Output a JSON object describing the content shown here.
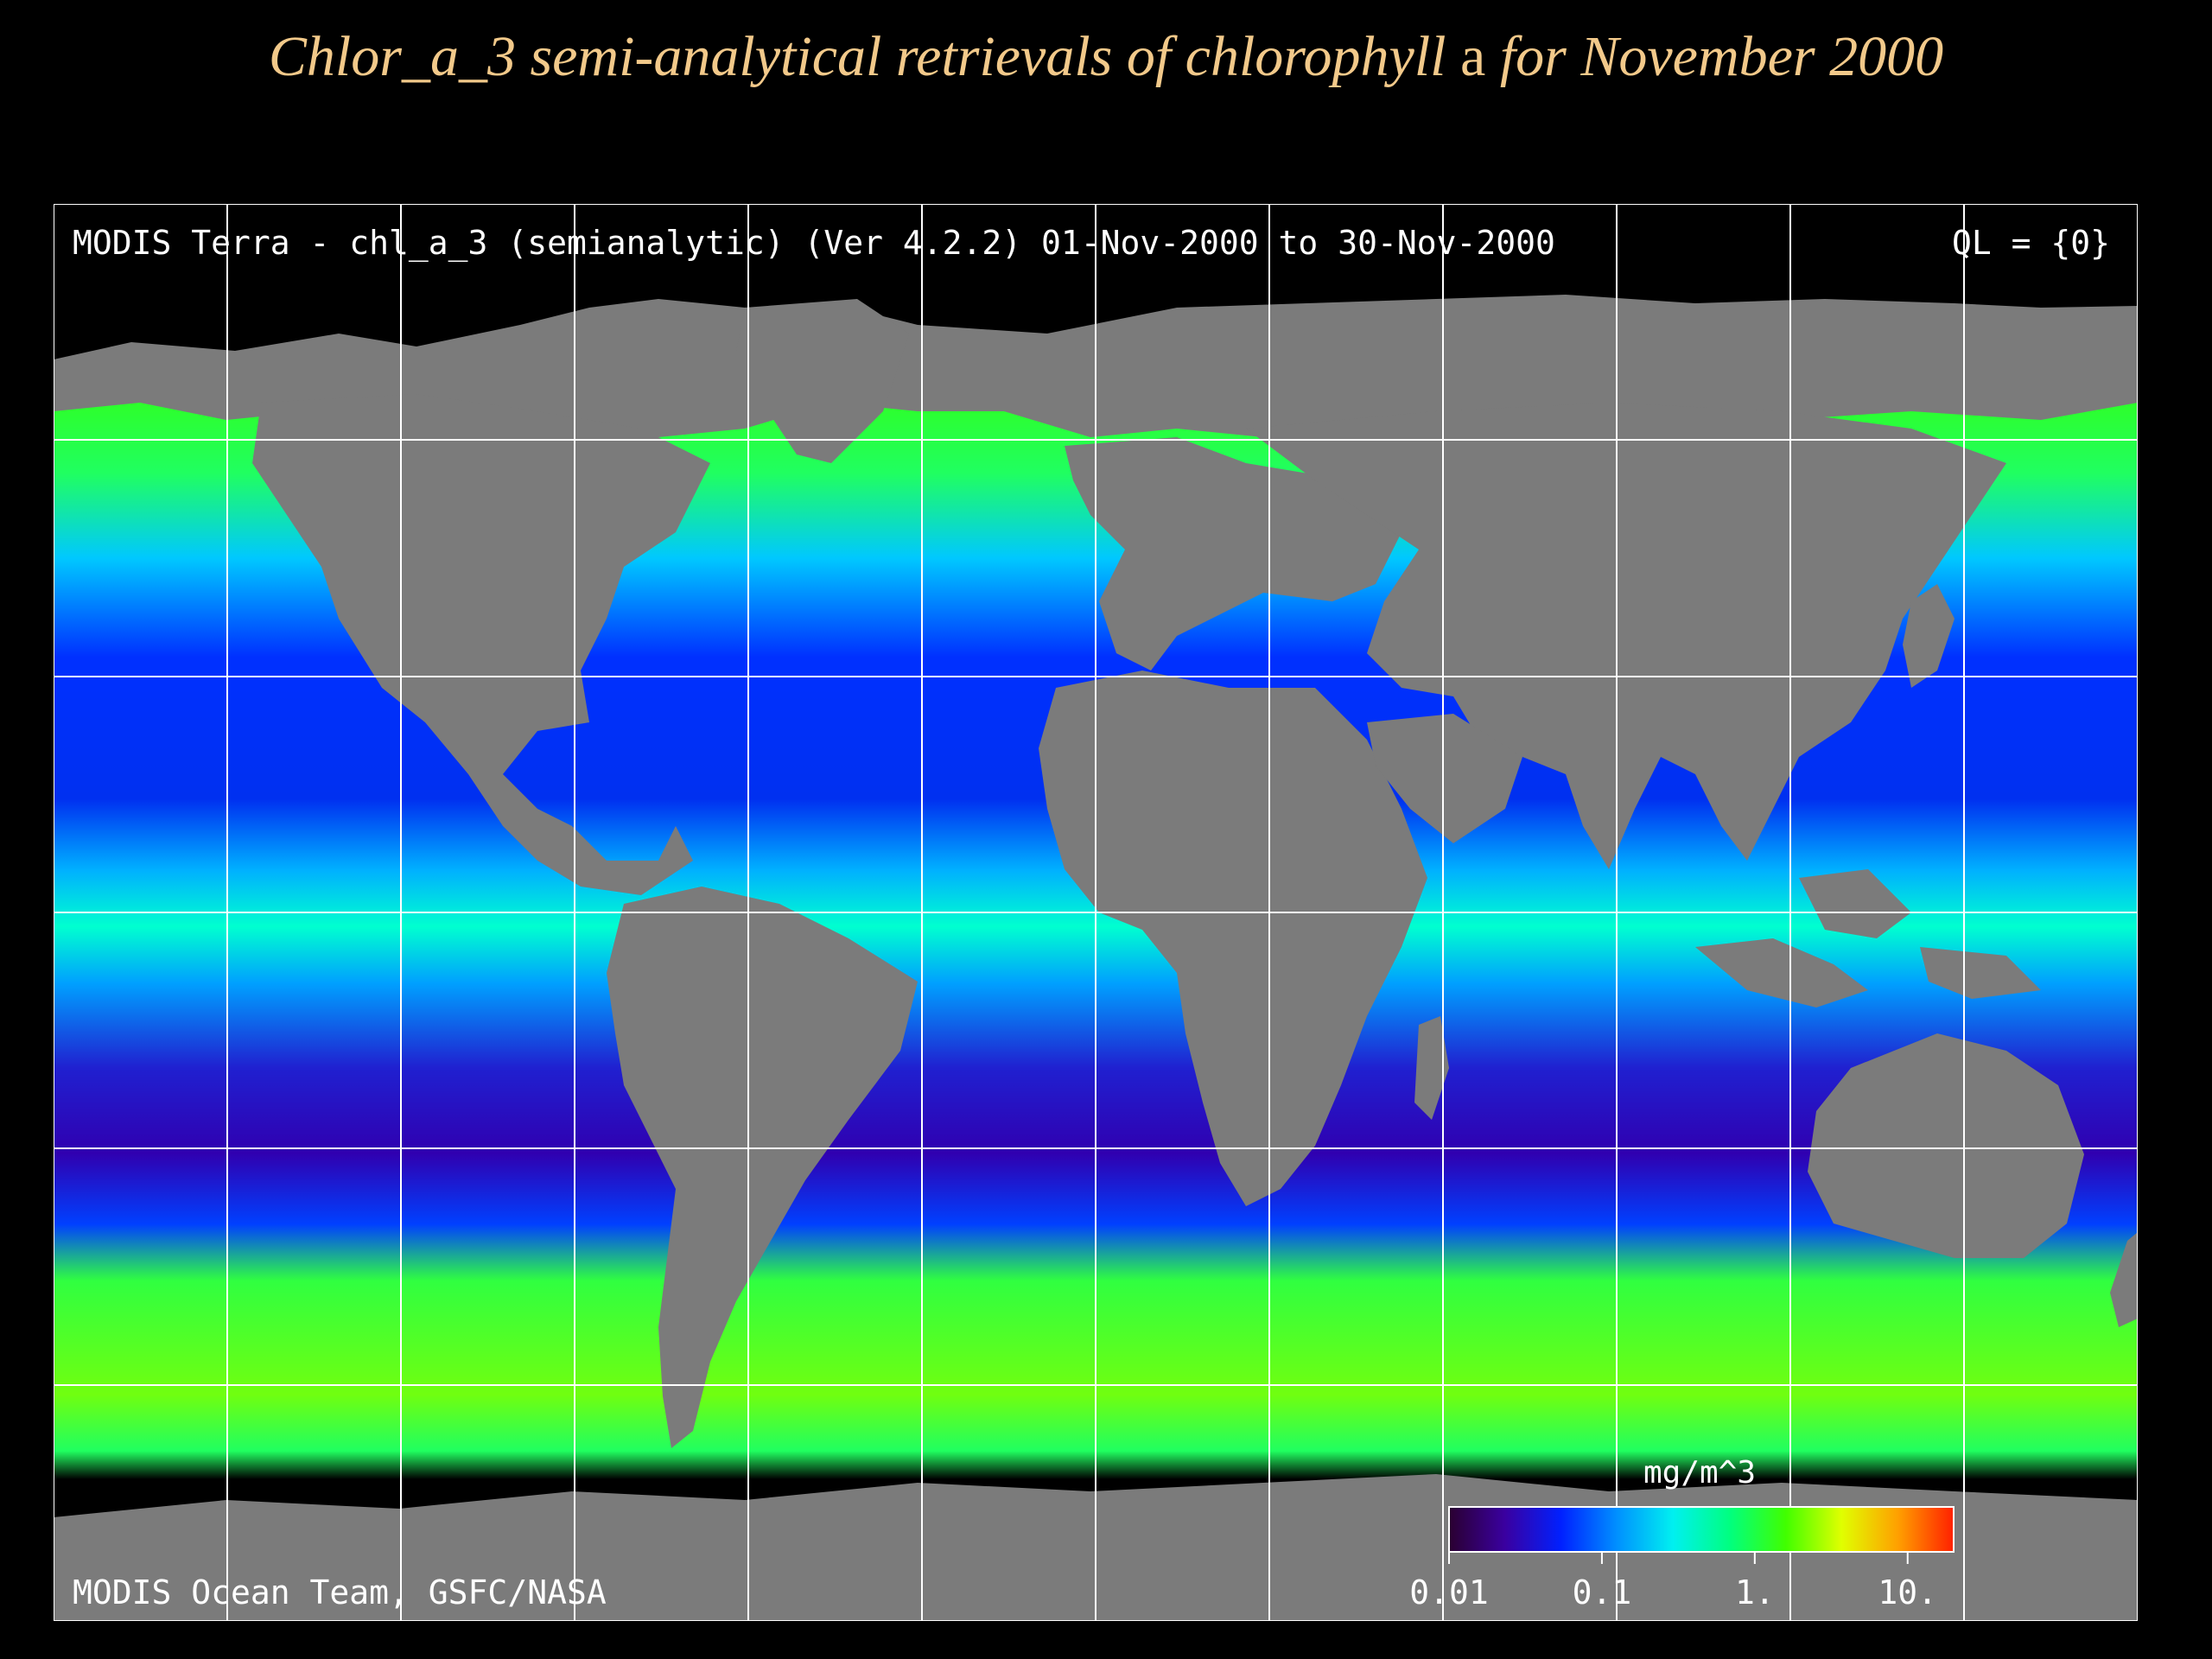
{
  "slide": {
    "title_part1": "Chlor_a_3 semi-analytical retrievals of chlorophyll",
    "title_a": "a",
    "title_part2": "for November 2000"
  },
  "map": {
    "header_left": "MODIS Terra - chl_a_3 (semianalytic)  (Ver 4.2.2)  01-Nov-2000 to 30-Nov-2000",
    "header_right": "QL = {0}",
    "credit": "MODIS Ocean Team, GSFC/NASA",
    "colors": {
      "land": "#7b7b7b",
      "no_data": "#000000",
      "grid": "#ffffff"
    },
    "grid_lines": {
      "lon_count": 12,
      "lat_count": 6
    }
  },
  "legend": {
    "unit": "mg/m^3",
    "ticks": [
      "0.01",
      "0.1",
      "1.",
      "10."
    ],
    "scale": "log",
    "range": [
      0.01,
      20
    ],
    "colors": [
      "#2a0030",
      "#3a00a0",
      "#0020ff",
      "#0090ff",
      "#00f0f0",
      "#00ff80",
      "#40ff00",
      "#e0ff00",
      "#ffa000",
      "#ff2000"
    ]
  }
}
